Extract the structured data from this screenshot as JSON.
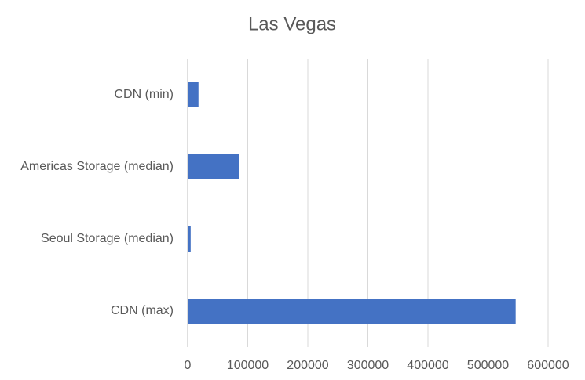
{
  "chart_data": {
    "type": "bar",
    "orientation": "horizontal",
    "title": "Las Vegas",
    "categories": [
      "CDN (min)",
      "Americas Storage (median)",
      "Seoul Storage (median)",
      "CDN (max)"
    ],
    "values": [
      18000,
      85000,
      5000,
      546000
    ],
    "color": "#4472c4",
    "xlim": [
      0,
      600000
    ],
    "xticks": [
      0,
      100000,
      200000,
      300000,
      400000,
      500000,
      600000
    ],
    "grid": true
  }
}
